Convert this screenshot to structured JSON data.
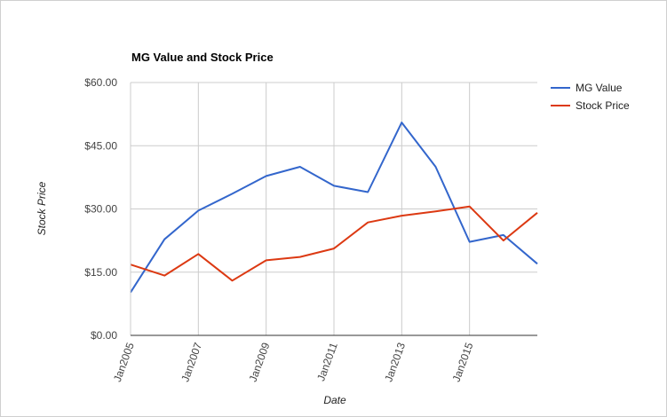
{
  "chart_data": {
    "type": "line",
    "title": "MG Value and Stock Price",
    "xlabel": "Date",
    "ylabel": "Stock Price",
    "x": [
      "2005-01",
      "2006-01",
      "2007-01",
      "2008-01",
      "2009-01",
      "2010-01",
      "2011-01",
      "2012-01",
      "2013-01",
      "2014-01",
      "2015-01",
      "2016-01",
      "2017-01"
    ],
    "x_range": [
      "2005-01",
      "2017-01"
    ],
    "x_ticks": [
      "Jan2005",
      "Jan2007",
      "Jan2009",
      "Jan2011",
      "Jan2013",
      "Jan2015"
    ],
    "y_ticks": [
      "$0.00",
      "$15.00",
      "$30.00",
      "$45.00",
      "$60.00"
    ],
    "ylim": [
      0,
      60
    ],
    "grid": true,
    "legend_position": "right",
    "series": [
      {
        "name": "MG Value",
        "color": "#3366cc",
        "values": [
          10.2,
          22.8,
          29.6,
          33.6,
          37.8,
          40.0,
          35.5,
          34.0,
          50.5,
          40.0,
          22.2,
          23.8,
          17.0
        ]
      },
      {
        "name": "Stock Price",
        "color": "#dc3912",
        "values": [
          16.8,
          14.2,
          19.3,
          13.0,
          17.8,
          18.6,
          20.6,
          26.8,
          28.4,
          29.4,
          30.6,
          22.5,
          29.1
        ]
      }
    ]
  }
}
